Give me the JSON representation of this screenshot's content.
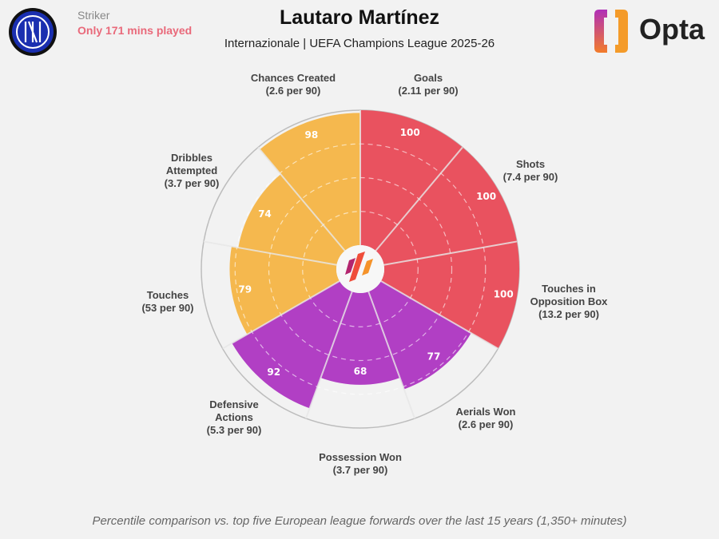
{
  "header": {
    "title": "Lautaro Martínez",
    "subtitle": "Internazionale | UEFA Champions League 2025-26",
    "position": "Striker",
    "minutes_note": "Only 171 mins played",
    "brand": "Opta",
    "club_logo": "internazionale-crest"
  },
  "footer": "Percentile comparison vs. top five European league forwards over the last 15 years (1,350+ minutes)",
  "colors": {
    "attacking": "#e9525f",
    "possession": "#f5b84e",
    "defending": "#b13fc4",
    "background": "#f2f2f2"
  },
  "chart_data": {
    "type": "pie",
    "subtype": "pizza-percentile",
    "range": [
      0,
      100
    ],
    "gridlines": [
      25,
      50,
      75,
      100
    ],
    "categories": [
      {
        "label1": "Goals",
        "label2": "",
        "per90": "(2.11 per 90)",
        "value": 100,
        "group": "attacking"
      },
      {
        "label1": "Shots",
        "label2": "",
        "per90": "(7.4 per 90)",
        "value": 100,
        "group": "attacking"
      },
      {
        "label1": "Touches in",
        "label2": "Opposition Box",
        "per90": "(13.2 per 90)",
        "value": 100,
        "group": "attacking"
      },
      {
        "label1": "Aerials Won",
        "label2": "",
        "per90": "(2.6 per 90)",
        "value": 77,
        "group": "defending"
      },
      {
        "label1": "Possession Won",
        "label2": "",
        "per90": "(3.7 per 90)",
        "value": 68,
        "group": "defending"
      },
      {
        "label1": "Defensive",
        "label2": "Actions",
        "per90": "(5.3 per 90)",
        "value": 92,
        "group": "defending"
      },
      {
        "label1": "Touches",
        "label2": "",
        "per90": "(53 per 90)",
        "value": 79,
        "group": "possession"
      },
      {
        "label1": "Dribbles",
        "label2": "Attempted",
        "per90": "(3.7 per 90)",
        "value": 74,
        "group": "possession"
      },
      {
        "label1": "Chances Created",
        "label2": "",
        "per90": "(2.6 per 90)",
        "value": 98,
        "group": "possession"
      }
    ]
  }
}
